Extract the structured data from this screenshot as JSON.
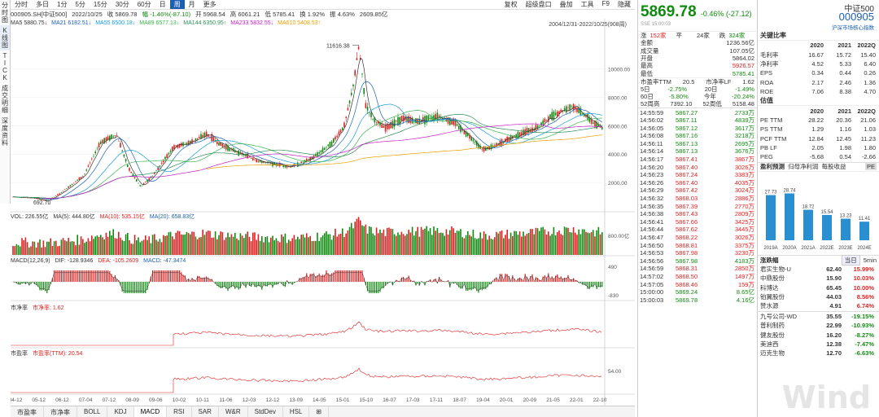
{
  "side_tabs": [
    "分\n时\n图",
    "K\n线\n图",
    "T\nI\nC\nK",
    "成\n交\n明\n细",
    "深\n度\n资\n料"
  ],
  "toolbar": {
    "periods": [
      "分时",
      "多日",
      "1分",
      "5分",
      "15分",
      "30分",
      "60分",
      "日",
      "周",
      "月",
      "更多"
    ],
    "active": "周",
    "right": [
      "复权",
      "超级盘口",
      "叠加",
      "工具",
      "F9",
      "隐藏"
    ]
  },
  "subtitle": {
    "code": "000905.SH[中证500]",
    "date": "2022/10/25",
    "close": "收 5869.78",
    "change": "幅 -1.46%(-87.10)",
    "open": "开 5968.54",
    "high": "高 6061.21",
    "low": "低 5785.41",
    "turnover": "换 1.92%",
    "amplitude": "振 4.63%",
    "amount": "2609.85亿"
  },
  "ma": [
    {
      "label": "MA5 5880.75↓",
      "color": "#333333"
    },
    {
      "label": "MA21 6182.51↓",
      "color": "#1a5fb4"
    },
    {
      "label": "MA55 6500.18↓",
      "color": "#1a9cd8"
    },
    {
      "label": "MA89 6577.13↓",
      "color": "#3cb44b"
    },
    {
      "label": "MA144 6350.95↑",
      "color": "#2e8b57"
    },
    {
      "label": "MA233 5832.55↓",
      "color": "#c020c0"
    },
    {
      "label": "MA610 5408.53↑",
      "color": "#e8a000"
    }
  ],
  "range": "2004/12/31-2022/10/25(908周)",
  "peak_label": "11616.38",
  "low_label": "692.70",
  "price_axis": [
    "10000.00",
    "8000.00",
    "6000.00",
    "4000.00",
    "2000.00"
  ],
  "vol": {
    "label": "VOL: 226.55亿",
    "ma5": "MA(5): 444.80亿",
    "ma10": "MA(10): 535.15亿",
    "ma20": "MA(20): 658.83亿",
    "axis": "800.00亿"
  },
  "macd": {
    "label": "MACD(12,26,9)",
    "dif": "DIF: -128.9346",
    "dea": "DEA: -105.2609",
    "macd": "MACD: -47.3474",
    "axis": [
      "490",
      "-830"
    ]
  },
  "pb": {
    "label": "市净率",
    "value": "市净率: 1.62"
  },
  "pe": {
    "label": "市盈率",
    "value": "市盈率(TTM): 20.54",
    "axis": "54.00"
  },
  "x_axis": [
    "04-12",
    "05-12",
    "06-12",
    "07-04",
    "07-12",
    "08-09",
    "09-06",
    "10-02",
    "10-11",
    "11-06",
    "12-03",
    "12-12",
    "13-09",
    "14-05",
    "15-01",
    "15-10",
    "16-07",
    "17-03",
    "17-11",
    "18-07",
    "19-04",
    "20-01",
    "20-09",
    "21-05",
    "22-01",
    "22-10"
  ],
  "bottom_tabs": [
    "市盈率",
    "市净率",
    "BOLL",
    "KDJ",
    "MACD",
    "RSI",
    "SAR",
    "W&R",
    "StdDev",
    "HSL",
    "⊞"
  ],
  "bottom_active": "MACD",
  "quote": {
    "price": "5869.78",
    "change": "-0.46% (-27.12)",
    "name": "中证500",
    "code": "000905",
    "market": "SSE  15:00:03",
    "link": "沪深市场核心指数",
    "zhang": "涨",
    "up": "152家",
    "ping": "平",
    "flat": "24家",
    "die": "跌",
    "down": "324家",
    "stats": [
      [
        "金额",
        "1236.56亿"
      ],
      [
        "成交量",
        "107.05亿"
      ],
      [
        "开盘",
        "5864.02"
      ],
      [
        "最高",
        "5926.57"
      ],
      [
        "最低",
        "5785.41"
      ]
    ],
    "pe_row": [
      "市盈率TTM",
      "20.5",
      "市净率LF",
      "1.62"
    ],
    "perf": [
      [
        "5日",
        "-2.75%",
        "20日",
        "-1.49%"
      ],
      [
        "60日",
        "-5.80%",
        "今年",
        "-20.24%"
      ]
    ],
    "week52": [
      "52周高",
      "7392.10",
      "52周低",
      "5158.48"
    ]
  },
  "ticks": [
    [
      "14:55:59",
      "5867.27",
      "2733万"
    ],
    [
      "14:56:02",
      "5867.11",
      "4839万"
    ],
    [
      "14:56:05",
      "5867.12",
      "3617万"
    ],
    [
      "14:56:08",
      "5867.16",
      "3218万"
    ],
    [
      "14:56:11",
      "5867.13",
      "2695万"
    ],
    [
      "14:56:14",
      "5867.13",
      "3676万"
    ],
    [
      "14:56:17",
      "5867.41",
      "3867万"
    ],
    [
      "14:56:20",
      "5867.40",
      "3026万"
    ],
    [
      "14:56:23",
      "5867.24",
      "3383万"
    ],
    [
      "14:56:26",
      "5867.40",
      "4035万"
    ],
    [
      "14:56:29",
      "5867.42",
      "3024万"
    ],
    [
      "14:56:32",
      "5868.03",
      "2886万"
    ],
    [
      "14:56:35",
      "5867.39",
      "2770万"
    ],
    [
      "14:56:38",
      "5867.43",
      "2809万"
    ],
    [
      "14:56:41",
      "5867.66",
      "3425万"
    ],
    [
      "14:56:44",
      "5867.62",
      "3445万"
    ],
    [
      "14:56:47",
      "5868.22",
      "3026万"
    ],
    [
      "14:56:50",
      "5868.81",
      "3375万"
    ],
    [
      "14:56:53",
      "5867.98",
      "3230万"
    ],
    [
      "14:56:56",
      "5867.98",
      "4183万"
    ],
    [
      "14:56:59",
      "5868.31",
      "2850万"
    ],
    [
      "14:57:02",
      "5868.50",
      "1497万"
    ],
    [
      "14:57:05",
      "5868.46",
      "159万"
    ],
    [
      "15:00:00",
      "5869.24",
      "8.65亿"
    ],
    [
      "15:00:03",
      "5869.78",
      "4.16亿"
    ]
  ],
  "tick_colors": [
    "g",
    "g",
    "g",
    "g",
    "g",
    "g",
    "r",
    "r",
    "r",
    "r",
    "r",
    "r",
    "r",
    "r",
    "r",
    "r",
    "r",
    "r",
    "r",
    "g",
    "r",
    "r",
    "r",
    "g",
    "g"
  ],
  "ratios": {
    "title": "关键比率",
    "years": [
      "2020",
      "2021",
      "2022Q"
    ],
    "rows": [
      [
        "毛利率",
        "16.67",
        "15.72",
        "15.40"
      ],
      [
        "净利率",
        "4.52",
        "5.33",
        "6.40"
      ],
      [
        "EPS",
        "0.34",
        "0.44",
        "0.26"
      ],
      [
        "ROA",
        "2.17",
        "2.46",
        "1.36"
      ],
      [
        "ROE",
        "7.06",
        "8.38",
        "4.70"
      ]
    ]
  },
  "valuation": {
    "title": "估值",
    "years": [
      "2020",
      "2021",
      "2022Q"
    ],
    "rows": [
      [
        "PE TTM",
        "28.22",
        "20.36",
        "21.06"
      ],
      [
        "PS TTM",
        "1.29",
        "1.16",
        "1.03"
      ],
      [
        "PCF TTM",
        "12.84",
        "12.45",
        "11.23"
      ],
      [
        "PB LF",
        "2.05",
        "1.98",
        "1.80"
      ],
      [
        "PEG",
        "-5.68",
        "0.54",
        "-2.66"
      ]
    ]
  },
  "forecast": {
    "tabs": [
      "盈利预测",
      "归母净利润",
      "每股收益",
      "PE"
    ],
    "active": "盈利预测"
  },
  "forecast_chart": {
    "type": "bar",
    "categories": [
      "2019A",
      "2020A",
      "2021A",
      "2022E",
      "2023E",
      "2024E"
    ],
    "values": [
      27.73,
      28.74,
      18.72,
      15.54,
      13.23,
      11.41
    ],
    "labels": [
      "27.73",
      "28.74",
      "18.72",
      "15.54",
      "13.23",
      "11.41"
    ]
  },
  "gainers": {
    "title": "涨跌幅",
    "active": "当日",
    "other": "5min",
    "rows": [
      [
        "君实生物-U",
        "62.40",
        "15.99%"
      ],
      [
        "中鼎股份",
        "15.90",
        "10.03%"
      ],
      [
        "科博达",
        "65.45",
        "10.00%"
      ],
      [
        "铂翼股份",
        "44.03",
        "8.56%"
      ],
      [
        "赞水源",
        "4.91",
        "6.74%"
      ]
    ]
  },
  "losers": {
    "rows": [
      [
        "九号公司-WD",
        "35.55",
        "-19.15%"
      ],
      [
        "普利制药",
        "22.99",
        "-10.93%"
      ],
      [
        "健友股份",
        "16.20",
        "-8.27%"
      ],
      [
        "美迪西",
        "12.38",
        "-7.47%"
      ],
      [
        "迈克生物",
        "12.70",
        "-6.63%"
      ]
    ]
  },
  "watermark": "Wind"
}
